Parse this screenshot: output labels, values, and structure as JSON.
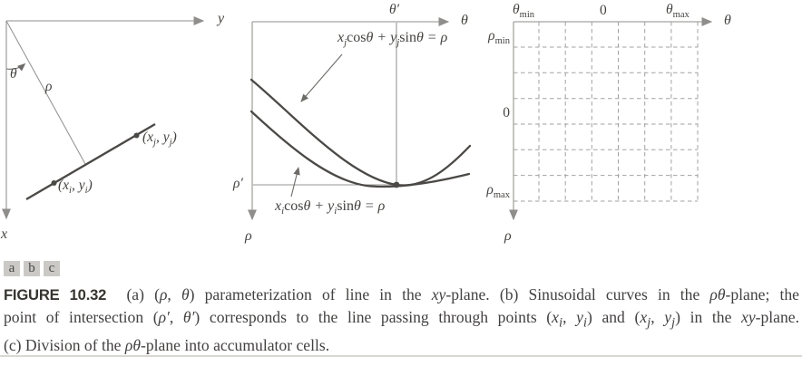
{
  "figure": {
    "panels": {
      "a": {
        "y_axis_label": "y",
        "x_axis_label": "x",
        "angle_label": "θ",
        "rho_label": "ρ",
        "point_i_label": "(x<sub>i</sub>, y<sub>i</sub>)",
        "point_j_label": "(x<sub>j</sub>, y<sub>j</sub>)"
      },
      "b": {
        "theta_axis_label": "θ",
        "rho_axis_label": "ρ",
        "theta_prime_label": "θ′",
        "rho_prime_label": "ρ′",
        "curve_j_equation": "x<sub>j</sub><span class=\"up\">cos</span>θ + y<sub>j</sub><span class=\"up\">sin</span>θ = ρ",
        "curve_i_equation": "x<sub>i</sub><span class=\"up\">cos</span>θ + y<sub>i</sub><span class=\"up\">sin</span>θ = ρ"
      },
      "c": {
        "theta_axis_label": "θ",
        "rho_axis_label": "ρ",
        "theta_min_label": "θ<sub class=\"up\">min</sub>",
        "theta_zero_label": "0",
        "theta_max_label": "θ<sub class=\"up\">max</sub>",
        "rho_min_label": "ρ<sub class=\"up\">min</sub>",
        "rho_zero_label": "0",
        "rho_max_label": "ρ<sub class=\"up\">max</sub>",
        "grid": {
          "dashed_cols": 7,
          "dashed_rows": 7
        }
      }
    },
    "panel_tags": [
      "a",
      "b",
      "c"
    ],
    "caption": {
      "lines": [
        "<span class=\"figno\">FIGURE 10.32</span>&nbsp; (a) (<i>ρ</i>, <i>θ</i>) parameterization of line in the <i>xy</i>-plane. (b) Sinusoidal curves in the <i>ρθ</i>-plane; the",
        "point of intersection (<i>ρ′</i>, <i>θ′</i>) corresponds to the line passing through points (<i>x<sub>i</sub></i>, <i>y<sub>i</sub></i>) and (<i>x<sub>j</sub></i>, <i>y<sub>j</sub></i>) in the <i>xy</i>-plane.",
        "(c) Division of the <i>ρθ</i>-plane into accumulator cells."
      ]
    },
    "colors": {
      "line_dark": "#4b4946",
      "line_gray": "#a5a4a2",
      "arrow_gray": "#8f8e8c",
      "text": "#454340",
      "tag_bg": "#cbc9c5",
      "rule": "#d9d8d5"
    }
  }
}
